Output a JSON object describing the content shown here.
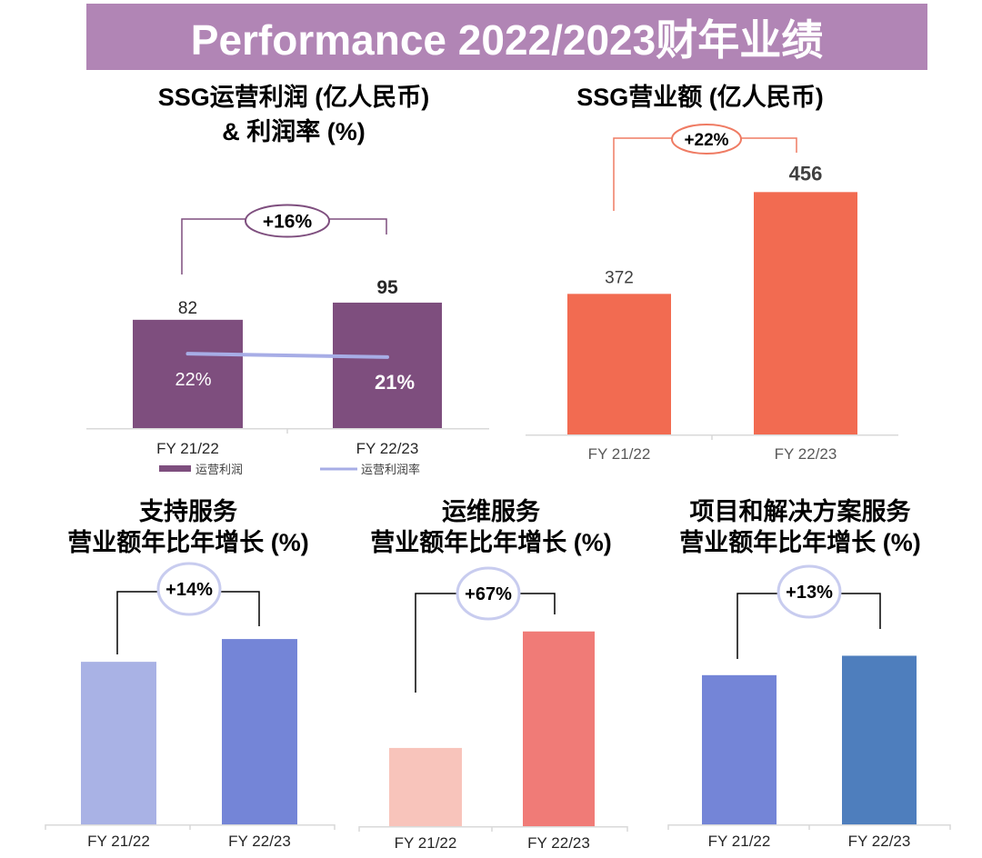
{
  "header": {
    "title": "Performance 2022/2023财年业绩",
    "background": "#B185B5",
    "text_color": "#FFFFFF"
  },
  "chart_data": [
    {
      "type": "bar",
      "title": "SSG运营利润 (亿人民币)\n& 利润率 (%)",
      "categories": [
        "FY 21/22",
        "FY 22/23"
      ],
      "ylim": [
        0,
        128
      ],
      "y2lim": [
        0,
        50
      ],
      "series": [
        {
          "name": "运营利润",
          "values": [
            82,
            95
          ],
          "labels": [
            "82",
            "95"
          ],
          "colors": [
            "#7E4E7E",
            "#7E4E7E"
          ],
          "label_color": "#262626"
        }
      ],
      "line_series": [
        {
          "name": "运营利润率",
          "values": [
            22,
            21
          ],
          "labels": [
            "22%",
            "21%"
          ],
          "color": "#A7ADE6",
          "label_color": "#FFFFFF"
        }
      ],
      "growth_label": "+16%",
      "bracket_color": "#7E4E7E",
      "badge_color": "#7E4E7E",
      "category_color": "#262626"
    },
    {
      "type": "bar",
      "title": "SSG营业额 (亿人民币)",
      "categories": [
        "FY 21/22",
        "FY 22/23"
      ],
      "ylim": [
        256,
        481
      ],
      "series": [
        {
          "values": [
            372,
            456
          ],
          "labels": [
            "372",
            "456"
          ],
          "colors": [
            "#F26B51",
            "#F26B51"
          ],
          "label_color": "#404040"
        }
      ],
      "growth_label": "+22%",
      "bracket_color": "#EF7B63",
      "badge_color": "#EF7B63",
      "category_color": "#595959"
    },
    {
      "type": "bar",
      "title": "支持服务\n营业额年比年增长 (%)",
      "categories": [
        "FY 21/22",
        "FY 22/23"
      ],
      "ylim": [
        0,
        123
      ],
      "series": [
        {
          "values": [
            100,
            114
          ],
          "colors": [
            "#A9B2E5",
            "#7485D7"
          ]
        }
      ],
      "growth_label": "+14%",
      "bracket_color": "#000000",
      "badge_color": "#C8CCEF",
      "category_color": "#262626"
    },
    {
      "type": "bar",
      "title": "运维服务\n营业额年比年增长 (%)",
      "categories": [
        "FY 21/22",
        "FY 22/23"
      ],
      "ylim": [
        55,
        170
      ],
      "series": [
        {
          "values": [
            100,
            167
          ],
          "colors": [
            "#F8C4BB",
            "#F07B77"
          ]
        }
      ],
      "growth_label": "+67%",
      "bracket_color": "#000000",
      "badge_color": "#C8CCEF",
      "category_color": "#262626"
    },
    {
      "type": "bar",
      "title": "项目和解决方案服务\n营业额年比年增长 (%)",
      "categories": [
        "FY 21/22",
        "FY 22/23"
      ],
      "ylim": [
        0,
        134
      ],
      "series": [
        {
          "values": [
            100,
            113
          ],
          "colors": [
            "#7485D7",
            "#4E7EBD"
          ]
        }
      ],
      "growth_label": "+13%",
      "bracket_color": "#000000",
      "badge_color": "#C8CCEF",
      "category_color": "#262626"
    }
  ]
}
